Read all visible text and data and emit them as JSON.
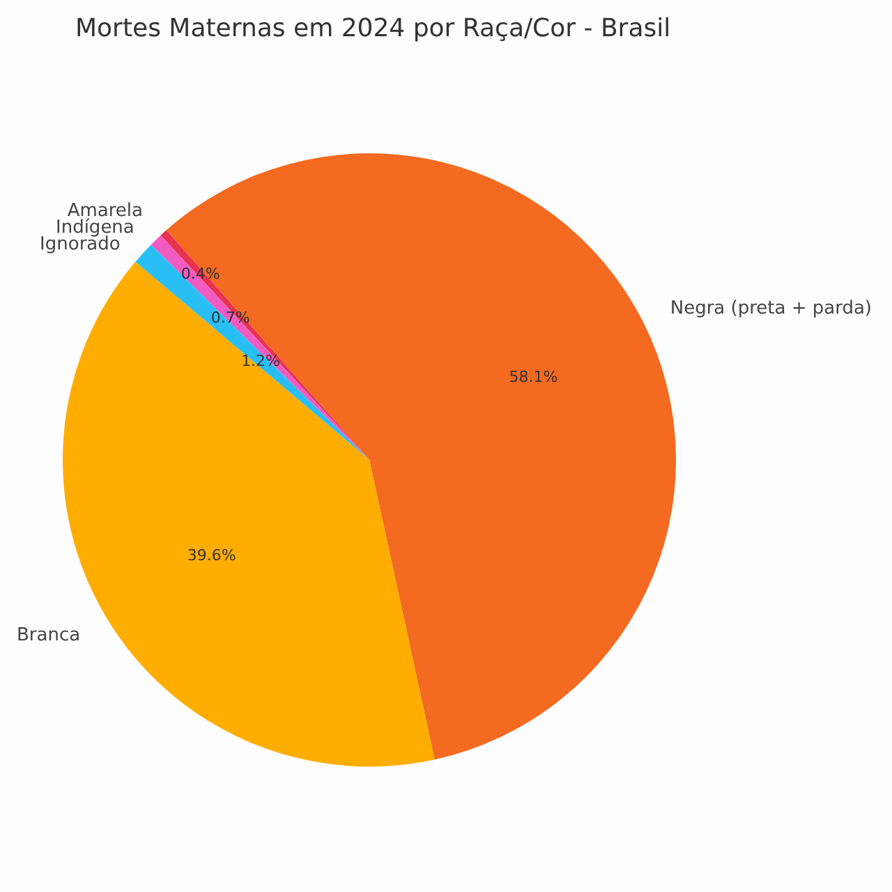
{
  "chart_data": {
    "type": "pie",
    "title": "Mortes Maternas em 2024 por Raça/Cor - Brasil",
    "categories": [
      "Negra (preta + parda)",
      "Amarela",
      "Indígena",
      "Ignorado",
      "Branca"
    ],
    "values": [
      58.1,
      0.4,
      0.7,
      1.2,
      39.6
    ],
    "colors": [
      "#f46a21",
      "#e8334f",
      "#f25bc1",
      "#29bff5",
      "#ffad00"
    ],
    "value_labels": [
      "58.1%",
      "0.4%",
      "0.7%",
      "1.2%",
      "39.6%"
    ]
  }
}
